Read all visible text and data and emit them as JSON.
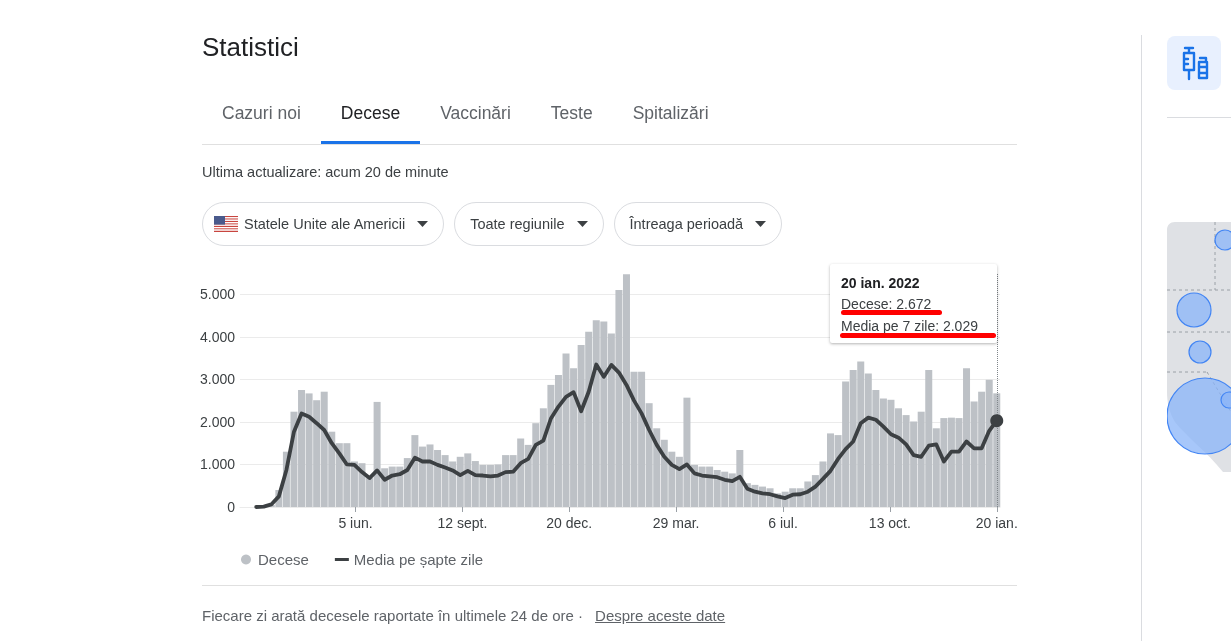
{
  "chart_data": {
    "type": "bar",
    "title": "Statistici",
    "subtitle": "Ultima actualizare: acum 20 de minute",
    "x": [
      "2020-02-27",
      "2020-03-05",
      "2020-03-12",
      "2020-03-19",
      "2020-03-26",
      "2020-04-02",
      "2020-04-09",
      "2020-04-16",
      "2020-04-23",
      "2020-04-30",
      "2020-05-07",
      "2020-05-14",
      "2020-05-21",
      "2020-05-28",
      "2020-06-04",
      "2020-06-11",
      "2020-06-18",
      "2020-06-25",
      "2020-07-02",
      "2020-07-09",
      "2020-07-16",
      "2020-07-23",
      "2020-07-30",
      "2020-08-06",
      "2020-08-13",
      "2020-08-20",
      "2020-08-27",
      "2020-09-03",
      "2020-09-10",
      "2020-09-17",
      "2020-09-24",
      "2020-10-01",
      "2020-10-08",
      "2020-10-15",
      "2020-10-22",
      "2020-10-29",
      "2020-11-05",
      "2020-11-12",
      "2020-11-19",
      "2020-11-26",
      "2020-12-03",
      "2020-12-10",
      "2020-12-17",
      "2020-12-24",
      "2020-12-31",
      "2021-01-07",
      "2021-01-14",
      "2021-01-21",
      "2021-01-28",
      "2021-02-04",
      "2021-02-11",
      "2021-02-18",
      "2021-02-25",
      "2021-03-04",
      "2021-03-11",
      "2021-03-18",
      "2021-03-25",
      "2021-04-01",
      "2021-04-08",
      "2021-04-15",
      "2021-04-22",
      "2021-04-29",
      "2021-05-06",
      "2021-05-13",
      "2021-05-20",
      "2021-05-27",
      "2021-06-03",
      "2021-06-10",
      "2021-06-17",
      "2021-06-24",
      "2021-07-01",
      "2021-07-08",
      "2021-07-15",
      "2021-07-22",
      "2021-07-29",
      "2021-08-05",
      "2021-08-12",
      "2021-08-19",
      "2021-08-26",
      "2021-09-02",
      "2021-09-09",
      "2021-09-16",
      "2021-09-23",
      "2021-09-30",
      "2021-10-07",
      "2021-10-14",
      "2021-10-21",
      "2021-10-28",
      "2021-11-04",
      "2021-11-11",
      "2021-11-18",
      "2021-11-25",
      "2021-12-02",
      "2021-12-09",
      "2021-12-16",
      "2021-12-23",
      "2021-12-30",
      "2022-01-06",
      "2022-01-13",
      "2022-01-20"
    ],
    "series": [
      {
        "name": "Decese",
        "color": "#bdc1c6",
        "values": [
          0,
          0,
          0,
          50,
          400,
          1300,
          2240,
          2750,
          2670,
          2510,
          2710,
          1770,
          1500,
          1500,
          1070,
          1030,
          680,
          2470,
          910,
          950,
          950,
          1150,
          1690,
          1420,
          1470,
          1340,
          1220,
          1070,
          1180,
          1260,
          1080,
          990,
          990,
          1000,
          1220,
          1220,
          1610,
          1460,
          1970,
          2320,
          2870,
          3100,
          3610,
          3260,
          3810,
          4120,
          4390,
          4360,
          4080,
          5100,
          5470,
          3180,
          3180,
          2440,
          1850,
          1580,
          1300,
          1180,
          2570,
          990,
          950,
          950,
          870,
          830,
          790,
          1340,
          560,
          520,
          480,
          440,
          320,
          360,
          440,
          440,
          600,
          750,
          1070,
          1730,
          1690,
          2950,
          3220,
          3420,
          3140,
          2750,
          2550,
          2520,
          2320,
          2160,
          2010,
          2240,
          3220,
          1850,
          2090,
          2100,
          2090,
          3260,
          2480,
          2710,
          2990,
          2672
        ]
      },
      {
        "name": "Media pe șapte zile",
        "type": "line",
        "color": "#3c4043",
        "values": [
          null,
          0,
          10,
          60,
          250,
          870,
          1770,
          2200,
          2120,
          1970,
          1810,
          1500,
          1260,
          1000,
          990,
          820,
          680,
          860,
          640,
          740,
          770,
          870,
          1160,
          1070,
          1070,
          990,
          930,
          860,
          750,
          850,
          750,
          740,
          720,
          740,
          820,
          830,
          1030,
          1130,
          1460,
          1560,
          2080,
          2360,
          2590,
          2700,
          2250,
          2710,
          3350,
          3060,
          3340,
          3160,
          2870,
          2500,
          2200,
          1810,
          1460,
          1180,
          990,
          890,
          1000,
          790,
          740,
          720,
          700,
          640,
          610,
          710,
          430,
          360,
          320,
          300,
          250,
          210,
          290,
          300,
          360,
          480,
          660,
          850,
          1130,
          1360,
          1540,
          1970,
          2100,
          2050,
          1890,
          1710,
          1630,
          1470,
          1220,
          1180,
          1440,
          1470,
          1070,
          1300,
          1300,
          1540,
          1380,
          1380,
          1790,
          2029
        ]
      },
      {
        "type": "scatter",
        "color": "#3c4043",
        "x": [
          "2022-01-20"
        ],
        "values": [
          2029
        ]
      }
    ],
    "xlim": [
      "2020-02-19",
      "2022-01-23"
    ],
    "xticks": [
      {
        "value": "2020-06-05",
        "label": "5 iun."
      },
      {
        "value": "2020-09-12",
        "label": "12 sept."
      },
      {
        "value": "2020-12-20",
        "label": "20 dec."
      },
      {
        "value": "2021-03-29",
        "label": "29 mar."
      },
      {
        "value": "2021-07-06",
        "label": "6 iul."
      },
      {
        "value": "2021-10-13",
        "label": "13 oct."
      },
      {
        "value": "2022-01-20",
        "label": "20 ian."
      }
    ],
    "ylim": [
      0,
      5500
    ],
    "yticks": [
      0,
      {
        "value": 1000,
        "label": "1.000"
      },
      {
        "value": 2000,
        "label": "2.000"
      },
      {
        "value": 3000,
        "label": "3.000"
      },
      {
        "value": 4000,
        "label": "4.000"
      },
      {
        "value": 5000,
        "label": "5.000"
      }
    ],
    "grid": "y",
    "legend": "bottom left",
    "ref_lines": [
      {
        "axis": "x",
        "value": "2022-01-20",
        "line_style": "dotted",
        "color": "#80868b"
      }
    ],
    "annotations": [
      "Cazuri noi",
      "Decese",
      "Vaccinări",
      "Teste",
      "Spitalizări",
      "Statele Unite ale Americii",
      "Toate regiunile",
      "Întreaga perioadă",
      "20 ian. 2022",
      "Decese: 2.672",
      "Media pe 7 zile: 2.029",
      "Fiecare zi arată decesele raportate în ultimele 24 de ore ·",
      "Despre aceste date"
    ]
  }
}
